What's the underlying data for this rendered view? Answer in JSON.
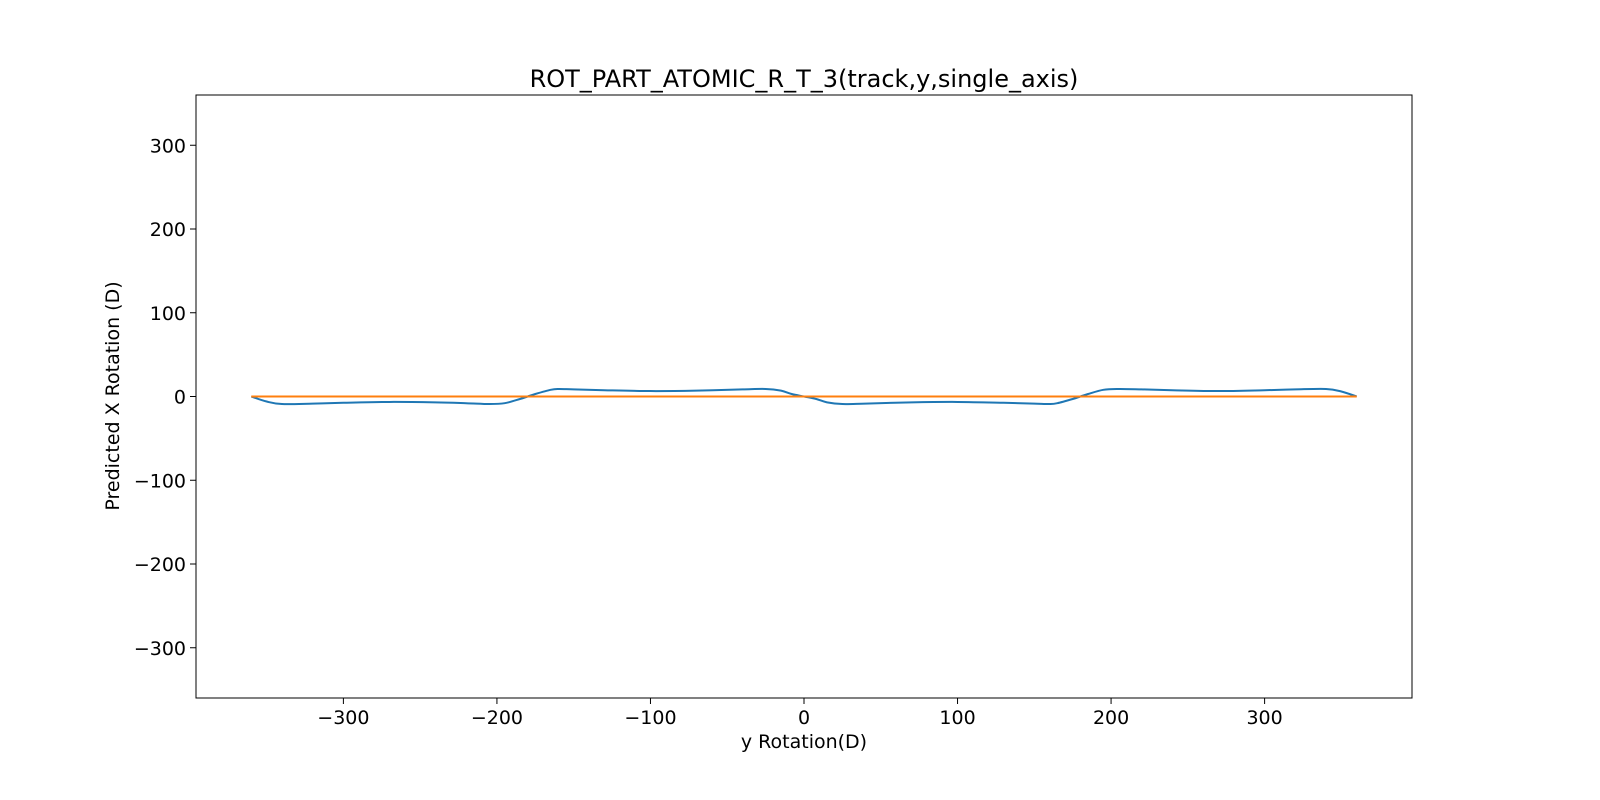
{
  "chart_data": {
    "type": "line",
    "title": "ROT_PART_ATOMIC_R_T_3(track,y,single_axis)",
    "xlabel": "y Rotation(D)",
    "ylabel": "Predicted X Rotation (D)",
    "xlim": [
      -396,
      396
    ],
    "ylim": [
      -360,
      360
    ],
    "xticks": [
      -300,
      -200,
      -100,
      0,
      100,
      200,
      300
    ],
    "yticks": [
      -300,
      -200,
      -100,
      0,
      100,
      200,
      300
    ],
    "xtick_labels": [
      "−300",
      "−200",
      "−100",
      "0",
      "100",
      "200",
      "300"
    ],
    "ytick_labels": [
      "−300",
      "−200",
      "−100",
      "0",
      "100",
      "200",
      "300"
    ],
    "grid": false,
    "series": [
      {
        "color": "#1f77b4",
        "x": [
          -360,
          -350,
          -340,
          -320,
          -300,
          -270,
          -240,
          -220,
          -205,
          -195,
          -185,
          -180,
          -175,
          -165,
          -160,
          -150,
          -130,
          -100,
          -70,
          -40,
          -25,
          -15,
          -8,
          0,
          8,
          15,
          25,
          40,
          70,
          100,
          130,
          150,
          160,
          165,
          175,
          180,
          185,
          195,
          205,
          220,
          240,
          270,
          300,
          320,
          340,
          350,
          360
        ],
        "y": [
          0,
          -6,
          -9,
          -8.5,
          -7.5,
          -6.5,
          -7,
          -8,
          -9,
          -8,
          -3,
          0,
          3,
          8,
          9,
          8.5,
          7.5,
          6.5,
          7,
          8.5,
          9,
          7,
          3,
          0,
          -3,
          -7,
          -9,
          -8.5,
          -7,
          -6.5,
          -7.5,
          -8.5,
          -9,
          -8,
          -3,
          0,
          3,
          8,
          9,
          8.5,
          7.5,
          6.5,
          7.5,
          8.5,
          9,
          6,
          0
        ]
      },
      {
        "color": "#ff7f0e",
        "x": [
          -360,
          360
        ],
        "y": [
          0,
          0
        ]
      }
    ]
  }
}
